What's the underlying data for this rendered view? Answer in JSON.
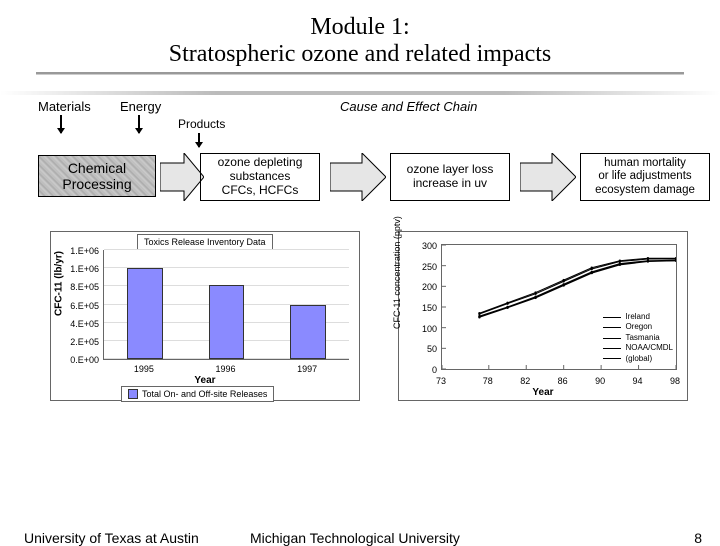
{
  "title": {
    "line1": "Module 1:",
    "line2": "Stratospheric ozone and related impacts",
    "fontsize": 24
  },
  "cause_chain": {
    "header": "Cause and Effect Chain",
    "inputs": {
      "materials": "Materials",
      "energy": "Energy",
      "products": "Products"
    },
    "stage1": {
      "label": "Chemical\nProcessing"
    },
    "stage2": {
      "label": "ozone depleting\nsubstances\nCFCs, HCFCs"
    },
    "stage3": {
      "label": "ozone layer loss\nincrease in uv"
    },
    "stage4": {
      "label": "human mortality\nor life adjustments\necosystem damage"
    },
    "arrow_fill": "#e6e6e6",
    "arrow_stroke": "#000000"
  },
  "bar_chart": {
    "type": "bar",
    "title": "Toxics Release Inventory Data",
    "ylabel": "CFC-11 (lb/yr)",
    "xlabel": "Year",
    "categories": [
      "1995",
      "1996",
      "1997"
    ],
    "values": [
      1000000.0,
      820000.0,
      590000.0
    ],
    "ylim": [
      0,
      1200000.0
    ],
    "ytick_labels": [
      "0.E+00",
      "2.E+05",
      "4.E+05",
      "6.E+05",
      "8.E+05",
      "1.E+06",
      "1.E+06"
    ],
    "ytick_values": [
      0,
      200000.0,
      400000.0,
      600000.0,
      800000.0,
      1000000.0,
      1200000.0
    ],
    "bar_color": "#8a8aff",
    "bar_border": "#333333",
    "grid_color": "#dddddd",
    "legend": "Total On- and Off-site Releases",
    "label_fontsize": 10,
    "tick_fontsize": 9
  },
  "line_chart": {
    "type": "line",
    "ylabel": "CFC-11 concentration (pptv)",
    "xlabel": "Year",
    "xticks": [
      73,
      78,
      82,
      86,
      90,
      94,
      98
    ],
    "yticks": [
      0,
      50,
      100,
      150,
      200,
      250,
      300
    ],
    "xlim": [
      73,
      98
    ],
    "ylim": [
      0,
      300
    ],
    "series": [
      {
        "name": "Ireland",
        "points": [
          [
            77,
            135
          ],
          [
            80,
            160
          ],
          [
            83,
            185
          ],
          [
            86,
            215
          ],
          [
            89,
            245
          ],
          [
            92,
            262
          ],
          [
            95,
            268
          ],
          [
            98,
            268
          ]
        ]
      },
      {
        "name": "Oregon",
        "points": [
          [
            77,
            133
          ],
          [
            80,
            158
          ],
          [
            83,
            182
          ],
          [
            86,
            212
          ],
          [
            89,
            242
          ],
          [
            92,
            260
          ],
          [
            95,
            266
          ],
          [
            98,
            266
          ]
        ]
      },
      {
        "name": "Tasmania",
        "points": [
          [
            77,
            125
          ],
          [
            80,
            148
          ],
          [
            83,
            172
          ],
          [
            86,
            202
          ],
          [
            89,
            232
          ],
          [
            92,
            252
          ],
          [
            95,
            260
          ],
          [
            98,
            262
          ]
        ]
      },
      {
        "name": "NOAA/CMDL",
        "points": [
          [
            77,
            128
          ],
          [
            80,
            150
          ],
          [
            83,
            175
          ],
          [
            86,
            205
          ],
          [
            89,
            235
          ],
          [
            92,
            255
          ],
          [
            95,
            262
          ],
          [
            98,
            263
          ]
        ]
      },
      {
        "name": "(global)",
        "points": [
          [
            77,
            126
          ],
          [
            80,
            149
          ],
          [
            83,
            173
          ],
          [
            86,
            203
          ],
          [
            89,
            233
          ],
          [
            92,
            253
          ],
          [
            95,
            261
          ],
          [
            98,
            262
          ]
        ]
      }
    ],
    "line_color": "#000000"
  },
  "footer": {
    "left": "University of Texas at Austin",
    "center": "Michigan Technological University",
    "page": "8"
  }
}
